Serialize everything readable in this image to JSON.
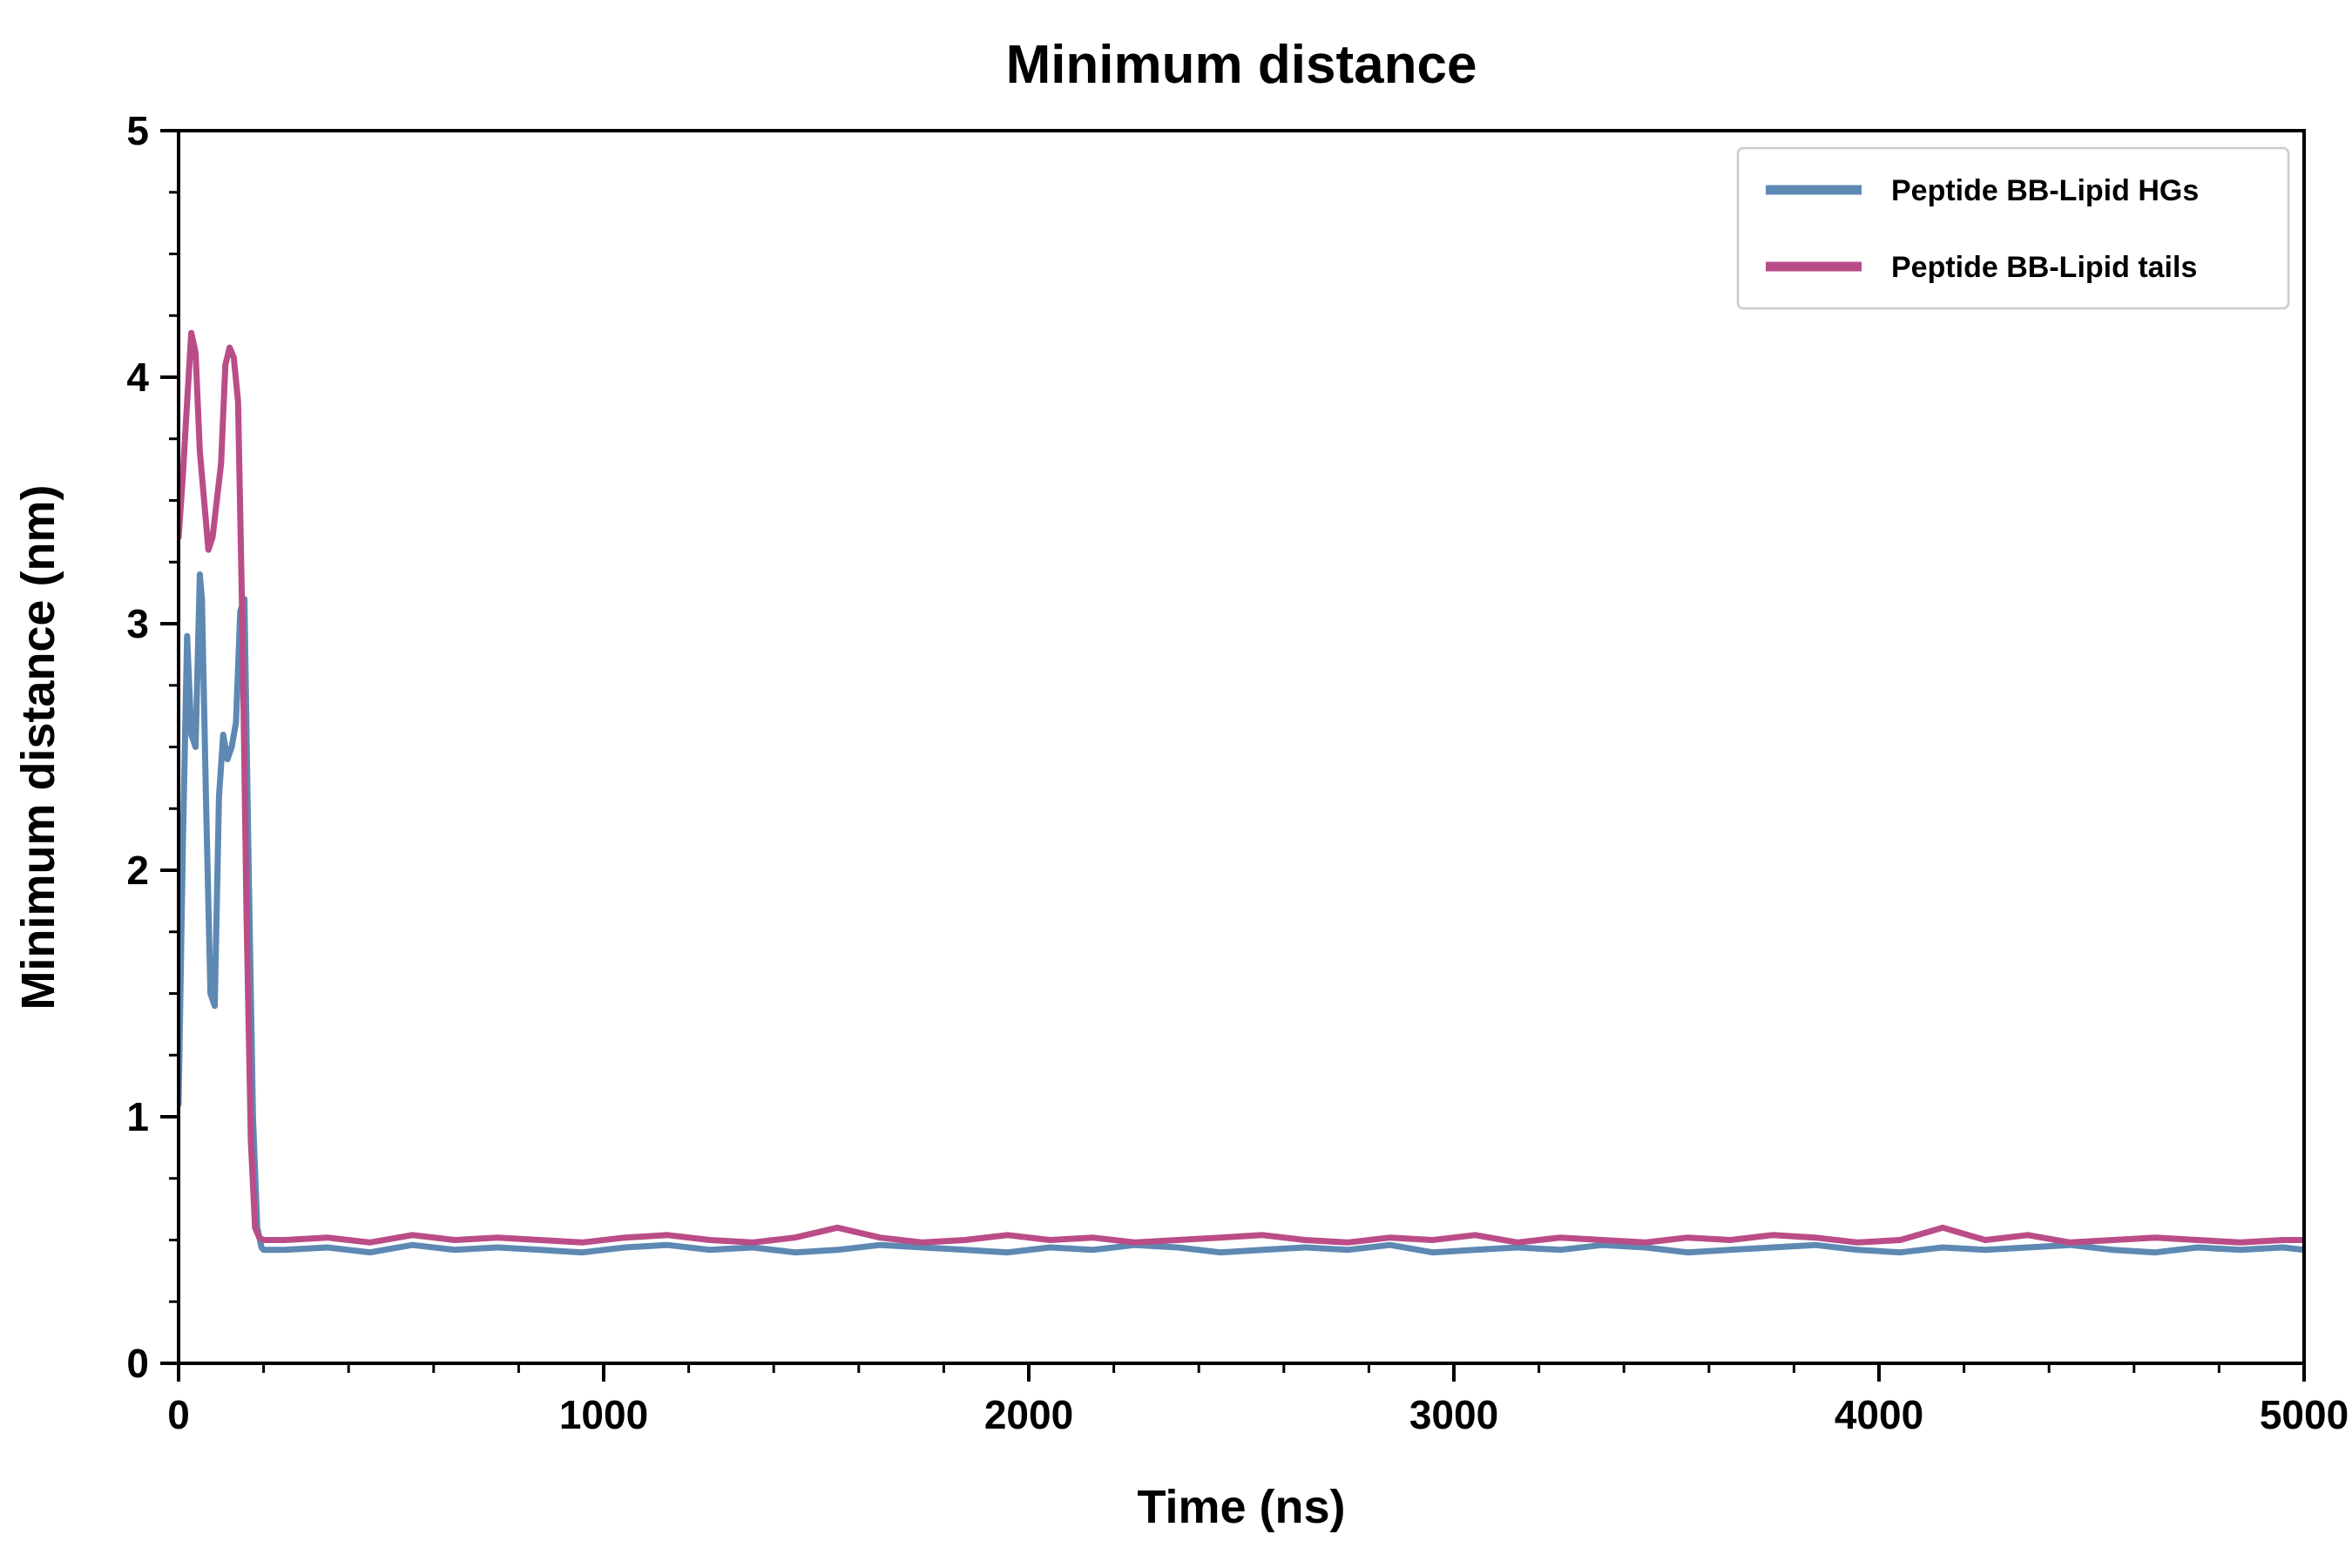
{
  "chart_data": {
    "type": "line",
    "title": "Minimum distance",
    "xlabel": "Time (ns)",
    "ylabel": "Minimum distance (nm)",
    "xlim": [
      0,
      5000
    ],
    "ylim": [
      0,
      5
    ],
    "xticks": [
      0,
      1000,
      2000,
      3000,
      4000,
      5000
    ],
    "yticks": [
      0,
      1,
      2,
      3,
      4,
      5
    ],
    "x_minor_step": 200,
    "y_minor_step": 0.25,
    "grid": false,
    "legend_position": "upper right",
    "legend_border_color": "#cccccc",
    "frame_color": "#000000",
    "series": [
      {
        "name": "Peptide BB-Lipid HGs",
        "color": "#5d89b3",
        "x": [
          0,
          10,
          20,
          30,
          40,
          50,
          55,
          65,
          75,
          85,
          95,
          105,
          115,
          125,
          135,
          145,
          155,
          165,
          175,
          185,
          195,
          200,
          250,
          350,
          450,
          550,
          650,
          750,
          850,
          950,
          1050,
          1150,
          1250,
          1350,
          1450,
          1550,
          1650,
          1750,
          1850,
          1950,
          2050,
          2150,
          2250,
          2350,
          2450,
          2550,
          2650,
          2750,
          2850,
          2950,
          3050,
          3150,
          3250,
          3350,
          3450,
          3550,
          3650,
          3750,
          3850,
          3950,
          4050,
          4150,
          4250,
          4350,
          4450,
          4550,
          4650,
          4750,
          4850,
          4950,
          5000
        ],
        "y": [
          1.05,
          2.1,
          2.95,
          2.55,
          2.5,
          3.2,
          3.1,
          2.25,
          1.5,
          1.45,
          2.3,
          2.55,
          2.45,
          2.5,
          2.6,
          3.05,
          3.1,
          2.0,
          1.0,
          0.55,
          0.47,
          0.46,
          0.46,
          0.47,
          0.45,
          0.48,
          0.46,
          0.47,
          0.46,
          0.45,
          0.47,
          0.48,
          0.46,
          0.47,
          0.45,
          0.46,
          0.48,
          0.47,
          0.46,
          0.45,
          0.47,
          0.46,
          0.48,
          0.47,
          0.45,
          0.46,
          0.47,
          0.46,
          0.48,
          0.45,
          0.46,
          0.47,
          0.46,
          0.48,
          0.47,
          0.45,
          0.46,
          0.47,
          0.48,
          0.46,
          0.45,
          0.47,
          0.46,
          0.47,
          0.48,
          0.46,
          0.45,
          0.47,
          0.46,
          0.47,
          0.46
        ]
      },
      {
        "name": "Peptide BB-Lipid tails",
        "color": "#ba4d87",
        "x": [
          0,
          10,
          20,
          30,
          40,
          50,
          60,
          70,
          80,
          90,
          100,
          110,
          120,
          130,
          140,
          150,
          160,
          170,
          180,
          190,
          200,
          250,
          350,
          450,
          550,
          650,
          750,
          850,
          950,
          1050,
          1150,
          1250,
          1350,
          1450,
          1550,
          1650,
          1750,
          1850,
          1950,
          2050,
          2150,
          2250,
          2350,
          2450,
          2550,
          2650,
          2750,
          2850,
          2950,
          3050,
          3150,
          3250,
          3350,
          3450,
          3550,
          3650,
          3750,
          3850,
          3950,
          4050,
          4150,
          4250,
          4350,
          4450,
          4550,
          4650,
          4750,
          4850,
          4950,
          5000
        ],
        "y": [
          3.35,
          3.6,
          3.9,
          4.18,
          4.1,
          3.7,
          3.5,
          3.3,
          3.35,
          3.5,
          3.65,
          4.05,
          4.12,
          4.08,
          3.9,
          3.0,
          1.8,
          0.9,
          0.55,
          0.51,
          0.5,
          0.5,
          0.51,
          0.49,
          0.52,
          0.5,
          0.51,
          0.5,
          0.49,
          0.51,
          0.52,
          0.5,
          0.49,
          0.51,
          0.55,
          0.51,
          0.49,
          0.5,
          0.52,
          0.5,
          0.51,
          0.49,
          0.5,
          0.51,
          0.52,
          0.5,
          0.49,
          0.51,
          0.5,
          0.52,
          0.49,
          0.51,
          0.5,
          0.49,
          0.51,
          0.5,
          0.52,
          0.51,
          0.49,
          0.5,
          0.55,
          0.5,
          0.52,
          0.49,
          0.5,
          0.51,
          0.5,
          0.49,
          0.5,
          0.5
        ]
      }
    ]
  }
}
